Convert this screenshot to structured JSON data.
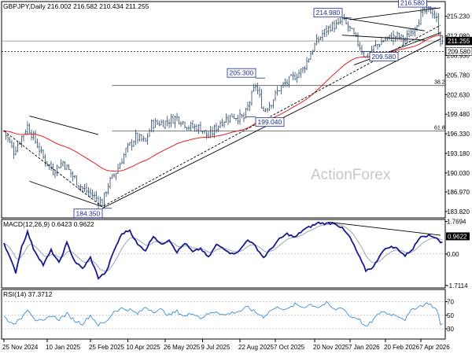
{
  "chart_data": [
    {
      "type": "candlestick",
      "symbol": "GBPJPY",
      "timeframe": "Daily",
      "ohlc": {
        "open": 216.002,
        "high": 216.582,
        "low": 210.434,
        "close": 211.255
      },
      "title": "GBPJPY,Daily  216.002 216.582 210.434 211.255",
      "watermark": "ActionForex",
      "ylim": [
        182.8,
        217.6
      ],
      "y_ticks": [
        {
          "value": 215.23,
          "label": "215.230"
        },
        {
          "value": 212.08,
          "label": "212.080"
        },
        {
          "value": 208.93,
          "label": "208.930"
        },
        {
          "value": 205.78,
          "label": "205.780"
        },
        {
          "value": 202.63,
          "label": "202.630"
        },
        {
          "value": 199.48,
          "label": "199.480"
        },
        {
          "value": 196.33,
          "label": "196.330"
        },
        {
          "value": 193.18,
          "label": "193.180"
        },
        {
          "value": 190.03,
          "label": "190.030"
        },
        {
          "value": 186.97,
          "label": "186.970"
        },
        {
          "value": 183.82,
          "label": "183.820"
        }
      ],
      "price_tags": [
        {
          "value": 211.255,
          "label": "211.255",
          "style": "dark"
        },
        {
          "value": 209.58,
          "label": "209.580",
          "style": "light"
        }
      ],
      "fib_levels": [
        {
          "value": 204.1,
          "label": "38.2",
          "bar_start": 55
        },
        {
          "value": 196.8,
          "label": "61.8",
          "bar_start": 55
        }
      ],
      "annotations": [
        {
          "label": "184.350",
          "bar": 50,
          "value": 184.35,
          "side": "left",
          "anchor": "below"
        },
        {
          "label": "205.300",
          "bar": 128,
          "value": 205.3,
          "side": "left",
          "anchor": "above"
        },
        {
          "label": "199.040",
          "bar": 128,
          "value": 199.04,
          "side": "right",
          "anchor": "below"
        },
        {
          "label": "214.980",
          "bar": 172,
          "value": 214.98,
          "side": "left",
          "anchor": "above"
        },
        {
          "label": "209.580",
          "bar": 186,
          "value": 209.58,
          "side": "right",
          "anchor": "below"
        },
        {
          "label": "216.580",
          "bar": 215,
          "value": 216.58,
          "side": "left",
          "anchor": "above"
        }
      ],
      "trendlines": [
        {
          "name": "down-channel-upper",
          "points": [
            [
              13,
              199.2
            ],
            [
              48,
              196.2
            ]
          ]
        },
        {
          "name": "down-channel-lower",
          "points": [
            [
              13,
              188.7
            ],
            [
              50,
              184.6
            ]
          ]
        },
        {
          "name": "long-term-support",
          "points": [
            [
              50,
              184.35
            ],
            [
              222,
              211.6
            ]
          ]
        },
        {
          "name": "dashed-trend",
          "points": [
            [
              0,
              196.8
            ],
            [
              50,
              184.6
            ],
            [
              222,
              213.8
            ]
          ],
          "dashed": true
        },
        {
          "name": "flag-upper",
          "points": [
            [
              172,
              214.98
            ],
            [
              214,
              212.9
            ]
          ]
        },
        {
          "name": "flag-lower",
          "points": [
            [
              172,
              212.2
            ],
            [
              214,
              211.4
            ]
          ]
        },
        {
          "name": "triangle-upper",
          "points": [
            [
              176,
              214.7
            ],
            [
              222,
              216.6
            ]
          ]
        },
        {
          "name": "triangle-lower",
          "points": [
            [
              178,
              207.4
            ],
            [
              222,
              212.6
            ]
          ]
        }
      ],
      "ema_line": {
        "color": "#e02020"
      },
      "close_series_anchors": [
        [
          0,
          196.8
        ],
        [
          5,
          193.5
        ],
        [
          12,
          197.6
        ],
        [
          15,
          195.8
        ],
        [
          20,
          192.5
        ],
        [
          25,
          190.4
        ],
        [
          30,
          191.8
        ],
        [
          35,
          189.5
        ],
        [
          40,
          187.5
        ],
        [
          45,
          186.5
        ],
        [
          50,
          185.2
        ],
        [
          53,
          188.2
        ],
        [
          57,
          190.2
        ],
        [
          62,
          193.6
        ],
        [
          67,
          195.8
        ],
        [
          72,
          195.0
        ],
        [
          75,
          197.9
        ],
        [
          82,
          198.2
        ],
        [
          88,
          199.0
        ],
        [
          94,
          197.5
        ],
        [
          100,
          197.3
        ],
        [
          104,
          195.8
        ],
        [
          110,
          198.2
        ],
        [
          116,
          199.3
        ],
        [
          122,
          198.8
        ],
        [
          128,
          204.2
        ],
        [
          132,
          200.1
        ],
        [
          136,
          201.5
        ],
        [
          140,
          203.6
        ],
        [
          146,
          205.1
        ],
        [
          152,
          206.7
        ],
        [
          158,
          210.6
        ],
        [
          162,
          212.4
        ],
        [
          166,
          213.6
        ],
        [
          170,
          213.8
        ],
        [
          172,
          214.7
        ],
        [
          176,
          213.1
        ],
        [
          180,
          211.0
        ],
        [
          184,
          208.6
        ],
        [
          188,
          210.2
        ],
        [
          194,
          211.6
        ],
        [
          200,
          212.0
        ],
        [
          204,
          211.4
        ],
        [
          208,
          213.2
        ],
        [
          212,
          215.4
        ],
        [
          215,
          216.3
        ],
        [
          218,
          215.9
        ],
        [
          220,
          214.6
        ],
        [
          222,
          211.3
        ]
      ],
      "x_labels": [
        {
          "bar": 0,
          "label": "25 Nov 2024"
        },
        {
          "bar": 22,
          "label": "10 Jan 2025"
        },
        {
          "bar": 44,
          "label": "25 Feb 2025"
        },
        {
          "bar": 63,
          "label": "10 Apr 2025"
        },
        {
          "bar": 82,
          "label": "26 May 2025"
        },
        {
          "bar": 101,
          "label": "9 Jul 2025"
        },
        {
          "bar": 120,
          "label": "22 Aug 2025"
        },
        {
          "bar": 138,
          "label": "7 Oct 2025"
        },
        {
          "bar": 158,
          "label": "20 Nov 2025"
        },
        {
          "bar": 176,
          "label": "7 Jan 2026"
        },
        {
          "bar": 194,
          "label": "20 Feb 2026"
        },
        {
          "bar": 212,
          "label": "7 Apr 2026"
        }
      ],
      "bar_count": 224
    },
    {
      "type": "line",
      "name": "MACD(12,26,9) 0.6423 0.9622",
      "macd": 0.6423,
      "signal": 0.9622,
      "ylim": [
        -1.85,
        1.88
      ],
      "y_ticks": [
        {
          "value": 1.7694,
          "label": "1.7694"
        },
        {
          "value": 0.0,
          "label": "0.00"
        },
        {
          "value": -1.7114,
          "label": "-1.7114"
        }
      ],
      "value_tag": {
        "value": 0.9622,
        "label": "0.9622"
      },
      "macd_anchors": [
        [
          0,
          0.6
        ],
        [
          3,
          -0.2
        ],
        [
          6,
          -1.0
        ],
        [
          9,
          0.4
        ],
        [
          12,
          1.2
        ],
        [
          15,
          0.3
        ],
        [
          20,
          -0.6
        ],
        [
          24,
          0.2
        ],
        [
          28,
          -0.5
        ],
        [
          32,
          0.6
        ],
        [
          36,
          -0.4
        ],
        [
          40,
          -0.8
        ],
        [
          44,
          -0.2
        ],
        [
          48,
          -1.3
        ],
        [
          52,
          -1.0
        ],
        [
          56,
          0.2
        ],
        [
          60,
          1.1
        ],
        [
          64,
          1.3
        ],
        [
          68,
          0.5
        ],
        [
          72,
          0.2
        ],
        [
          76,
          1.0
        ],
        [
          80,
          0.5
        ],
        [
          84,
          0.8
        ],
        [
          88,
          0.1
        ],
        [
          92,
          0.6
        ],
        [
          96,
          0.1
        ],
        [
          100,
          0.3
        ],
        [
          104,
          -0.2
        ],
        [
          108,
          0.5
        ],
        [
          112,
          0.3
        ],
        [
          116,
          0.0
        ],
        [
          120,
          0.2
        ],
        [
          124,
          0.8
        ],
        [
          128,
          0.4
        ],
        [
          132,
          -0.2
        ],
        [
          136,
          0.3
        ],
        [
          140,
          0.8
        ],
        [
          144,
          1.1
        ],
        [
          148,
          0.9
        ],
        [
          152,
          1.3
        ],
        [
          156,
          1.5
        ],
        [
          160,
          1.7
        ],
        [
          164,
          1.65
        ],
        [
          168,
          1.7
        ],
        [
          172,
          1.4
        ],
        [
          176,
          0.9
        ],
        [
          180,
          0.0
        ],
        [
          184,
          -0.9
        ],
        [
          188,
          -0.7
        ],
        [
          192,
          0.1
        ],
        [
          196,
          0.4
        ],
        [
          200,
          0.3
        ],
        [
          204,
          -0.1
        ],
        [
          208,
          0.3
        ],
        [
          212,
          1.0
        ],
        [
          216,
          1.0
        ],
        [
          220,
          0.9
        ],
        [
          222,
          0.64
        ]
      ],
      "trendline": {
        "points": [
          [
            165,
            1.74
          ],
          [
            222,
            1.02
          ]
        ]
      }
    },
    {
      "type": "line",
      "name": "RSI(14) 37.3712",
      "rsi": 37.3712,
      "ylim": [
        15,
        88
      ],
      "y_ticks": [
        {
          "value": 70,
          "label": "70"
        },
        {
          "value": 50,
          "label": "50"
        },
        {
          "value": 30,
          "label": "30"
        }
      ],
      "rsi_anchors": [
        [
          0,
          48
        ],
        [
          4,
          38
        ],
        [
          8,
          42
        ],
        [
          12,
          60
        ],
        [
          16,
          44
        ],
        [
          20,
          40
        ],
        [
          24,
          50
        ],
        [
          28,
          44
        ],
        [
          32,
          52
        ],
        [
          36,
          42
        ],
        [
          40,
          38
        ],
        [
          44,
          50
        ],
        [
          48,
          36
        ],
        [
          52,
          40
        ],
        [
          56,
          56
        ],
        [
          60,
          60
        ],
        [
          64,
          58
        ],
        [
          68,
          52
        ],
        [
          72,
          62
        ],
        [
          76,
          56
        ],
        [
          80,
          58
        ],
        [
          84,
          50
        ],
        [
          88,
          56
        ],
        [
          92,
          48
        ],
        [
          96,
          54
        ],
        [
          100,
          46
        ],
        [
          104,
          52
        ],
        [
          108,
          56
        ],
        [
          112,
          50
        ],
        [
          116,
          54
        ],
        [
          120,
          56
        ],
        [
          124,
          62
        ],
        [
          128,
          54
        ],
        [
          132,
          48
        ],
        [
          136,
          58
        ],
        [
          140,
          62
        ],
        [
          144,
          58
        ],
        [
          148,
          66
        ],
        [
          152,
          62
        ],
        [
          156,
          66
        ],
        [
          160,
          62
        ],
        [
          164,
          68
        ],
        [
          168,
          58
        ],
        [
          172,
          62
        ],
        [
          176,
          48
        ],
        [
          180,
          46
        ],
        [
          184,
          32
        ],
        [
          188,
          44
        ],
        [
          192,
          56
        ],
        [
          196,
          52
        ],
        [
          200,
          50
        ],
        [
          204,
          44
        ],
        [
          208,
          60
        ],
        [
          212,
          64
        ],
        [
          216,
          68
        ],
        [
          220,
          58
        ],
        [
          222,
          37.4
        ]
      ]
    }
  ]
}
